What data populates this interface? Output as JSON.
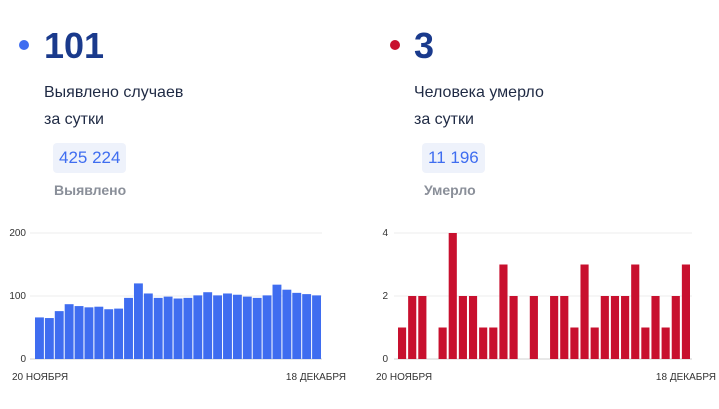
{
  "panels": [
    {
      "id": "cases",
      "color": "#3f6df0",
      "number": "101",
      "caption_line1": "Выявлено случаев",
      "caption_line2": "за сутки",
      "total": "425 224",
      "total_label": "Выявлено",
      "total_text_color": "#3f6df0",
      "total_bg": "#eef2fb"
    },
    {
      "id": "deaths",
      "color": "#c8102e",
      "number": "3",
      "caption_line1": "Человека умерло",
      "caption_line2": "за сутки",
      "total": "11 196",
      "total_label": "Умерло",
      "total_text_color": "#3f6df0",
      "total_bg": "#eef2fb"
    }
  ],
  "chart_data": [
    {
      "type": "bar",
      "color": "#3f6df0",
      "ylim": [
        0,
        200
      ],
      "yticks": [
        "0",
        "100",
        "200"
      ],
      "x_start_label": "20 НОЯБРЯ",
      "x_end_label": "18 ДЕКАБРЯ",
      "values": [
        66,
        65,
        76,
        87,
        84,
        82,
        83,
        79,
        80,
        97,
        120,
        104,
        97,
        99,
        96,
        97,
        101,
        106,
        101,
        104,
        102,
        99,
        97,
        101,
        118,
        110,
        105,
        103,
        101
      ]
    },
    {
      "type": "bar",
      "color": "#c8102e",
      "ylim": [
        0,
        4
      ],
      "yticks": [
        "0",
        "2",
        "4"
      ],
      "x_start_label": "20 НОЯБРЯ",
      "x_end_label": "18 ДЕКАБРЯ",
      "values": [
        1,
        2,
        2,
        0,
        1,
        4,
        2,
        2,
        1,
        1,
        3,
        2,
        0,
        2,
        0,
        2,
        2,
        1,
        3,
        1,
        2,
        2,
        2,
        3,
        1,
        2,
        1,
        2,
        3
      ]
    }
  ]
}
